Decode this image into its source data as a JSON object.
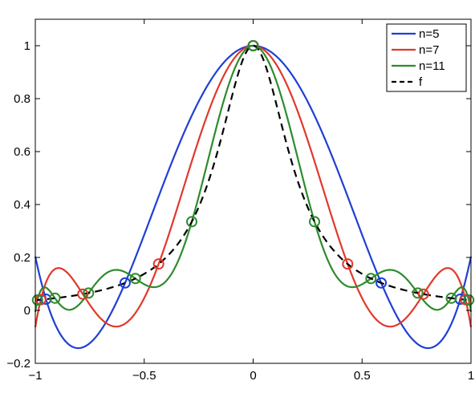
{
  "chart_data": {
    "type": "line",
    "title": "",
    "xlabel": "",
    "ylabel": "",
    "xlim": [
      -1,
      1
    ],
    "ylim": [
      -0.2,
      1.1
    ],
    "xticks": [
      -1,
      -0.5,
      0,
      0.5,
      1
    ],
    "xtick_labels": [
      "−1",
      "−0.5",
      "0",
      "0.5",
      "1"
    ],
    "yticks": [
      -0.2,
      0,
      0.2,
      0.4,
      0.6,
      0.8,
      1
    ],
    "ytick_labels": [
      "−0.2",
      "0",
      "0.2",
      "0.4",
      "0.6",
      "0.8",
      "1"
    ],
    "grid": false,
    "legend_position": "top-right",
    "function": "f(x) = 1/(1+25x^2)",
    "series": [
      {
        "name": "n=5",
        "color": "#1f3fd6",
        "style": "solid",
        "nodes": "chebyshev",
        "n": 5
      },
      {
        "name": "n=7",
        "color": "#e0392b",
        "style": "solid",
        "nodes": "chebyshev",
        "n": 7
      },
      {
        "name": "n=11",
        "color": "#2e8b2e",
        "style": "solid",
        "nodes": "chebyshev",
        "n": 11
      },
      {
        "name": "f",
        "color": "#000000",
        "style": "dashed"
      }
    ]
  }
}
